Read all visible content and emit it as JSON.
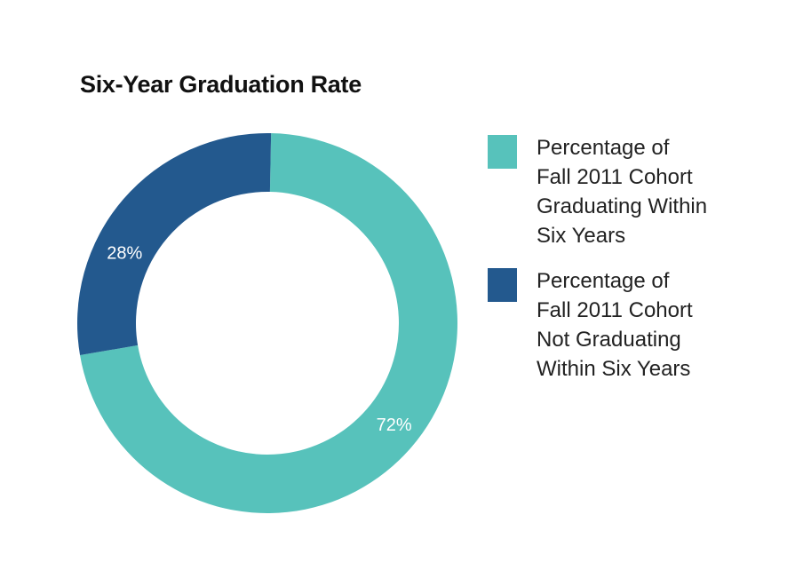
{
  "chart_data": {
    "type": "pie",
    "style": "donut",
    "title": "Six-Year Graduation Rate",
    "slices": [
      {
        "label": "Percentage of\n Fall 2011 Cohort\nGraduating Within\nSix Years",
        "value": 72,
        "display": "72%",
        "color": "#57c2bb"
      },
      {
        "label": "Percentage of\nFall 2011 Cohort\nNot Graduating\nWithin Six Years",
        "value": 28,
        "display": "28%",
        "color": "#23598e"
      }
    ],
    "legend_position": "right",
    "start": "top",
    "direction": "clockwise"
  }
}
